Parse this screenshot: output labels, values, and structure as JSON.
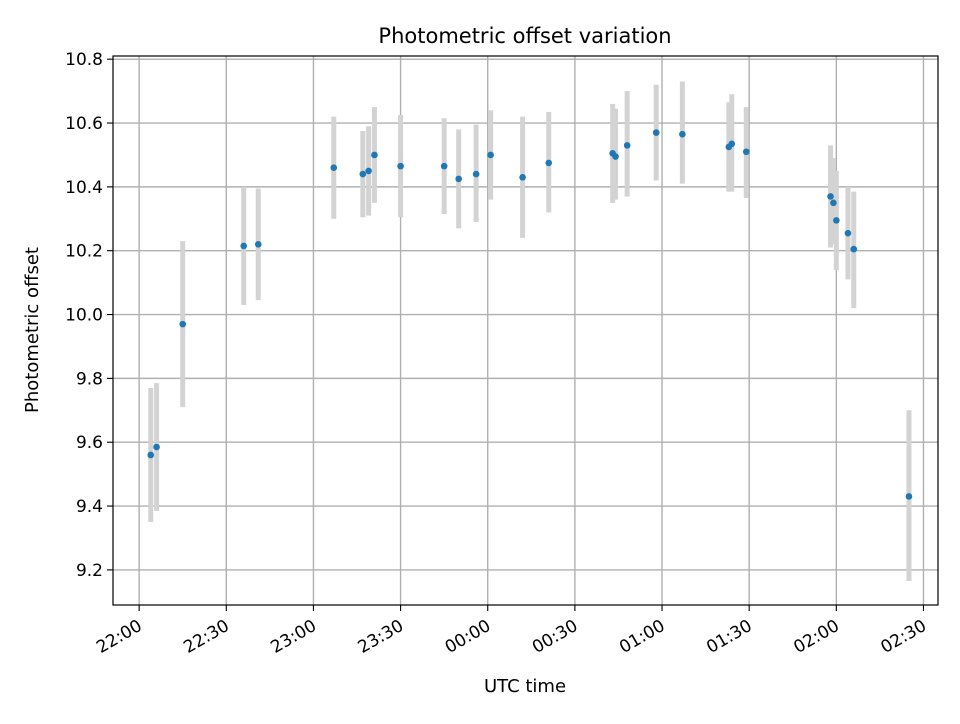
{
  "chart_data": {
    "type": "scatter",
    "title": "Photometric offset variation",
    "xlabel": "UTC time",
    "ylabel": "Photometric offset",
    "grid": true,
    "x_ticks": [
      "22:00",
      "22:30",
      "23:00",
      "23:30",
      "00:00",
      "00:30",
      "01:00",
      "01:30",
      "02:00",
      "02:30"
    ],
    "y_ticks": [
      "9.2",
      "9.4",
      "9.6",
      "9.8",
      "10.0",
      "10.2",
      "10.4",
      "10.6",
      "10.8"
    ],
    "xlim": [
      "21:51",
      "02:35"
    ],
    "ylim": [
      9.09,
      10.81
    ],
    "point_color": "#1f77b4",
    "errorbar_color": "#d3d3d3",
    "points": [
      {
        "x": "22:04",
        "y": 9.56,
        "lo": 9.35,
        "hi": 9.77
      },
      {
        "x": "22:06",
        "y": 9.585,
        "lo": 9.385,
        "hi": 9.785
      },
      {
        "x": "22:15",
        "y": 9.97,
        "lo": 9.71,
        "hi": 10.23
      },
      {
        "x": "22:36",
        "y": 10.215,
        "lo": 10.03,
        "hi": 10.4
      },
      {
        "x": "22:41",
        "y": 10.22,
        "lo": 10.045,
        "hi": 10.395
      },
      {
        "x": "23:07",
        "y": 10.46,
        "lo": 10.3,
        "hi": 10.62
      },
      {
        "x": "23:17",
        "y": 10.44,
        "lo": 10.305,
        "hi": 10.575
      },
      {
        "x": "23:19",
        "y": 10.45,
        "lo": 10.31,
        "hi": 10.59
      },
      {
        "x": "23:21",
        "y": 10.5,
        "lo": 10.35,
        "hi": 10.65
      },
      {
        "x": "23:30",
        "y": 10.465,
        "lo": 10.305,
        "hi": 10.625
      },
      {
        "x": "23:45",
        "y": 10.465,
        "lo": 10.315,
        "hi": 10.615
      },
      {
        "x": "23:50",
        "y": 10.425,
        "lo": 10.27,
        "hi": 10.58
      },
      {
        "x": "23:56",
        "y": 10.44,
        "lo": 10.29,
        "hi": 10.595
      },
      {
        "x": "00:01",
        "y": 10.5,
        "lo": 10.36,
        "hi": 10.64
      },
      {
        "x": "00:12",
        "y": 10.43,
        "lo": 10.24,
        "hi": 10.62
      },
      {
        "x": "00:21",
        "y": 10.475,
        "lo": 10.32,
        "hi": 10.635
      },
      {
        "x": "00:43",
        "y": 10.505,
        "lo": 10.35,
        "hi": 10.66
      },
      {
        "x": "00:44",
        "y": 10.495,
        "lo": 10.36,
        "hi": 10.645
      },
      {
        "x": "00:48",
        "y": 10.53,
        "lo": 10.37,
        "hi": 10.7
      },
      {
        "x": "00:58",
        "y": 10.57,
        "lo": 10.42,
        "hi": 10.72
      },
      {
        "x": "01:07",
        "y": 10.565,
        "lo": 10.41,
        "hi": 10.73
      },
      {
        "x": "01:23",
        "y": 10.525,
        "lo": 10.385,
        "hi": 10.665
      },
      {
        "x": "01:24",
        "y": 10.535,
        "lo": 10.385,
        "hi": 10.69
      },
      {
        "x": "01:29",
        "y": 10.51,
        "lo": 10.365,
        "hi": 10.65
      },
      {
        "x": "01:58",
        "y": 10.37,
        "lo": 10.21,
        "hi": 10.53
      },
      {
        "x": "01:59",
        "y": 10.35,
        "lo": 10.22,
        "hi": 10.49
      },
      {
        "x": "02:00",
        "y": 10.295,
        "lo": 10.14,
        "hi": 10.45
      },
      {
        "x": "02:04",
        "y": 10.255,
        "lo": 10.11,
        "hi": 10.4
      },
      {
        "x": "02:06",
        "y": 10.205,
        "lo": 10.02,
        "hi": 10.385
      },
      {
        "x": "02:25",
        "y": 9.43,
        "lo": 9.165,
        "hi": 9.7
      }
    ]
  }
}
